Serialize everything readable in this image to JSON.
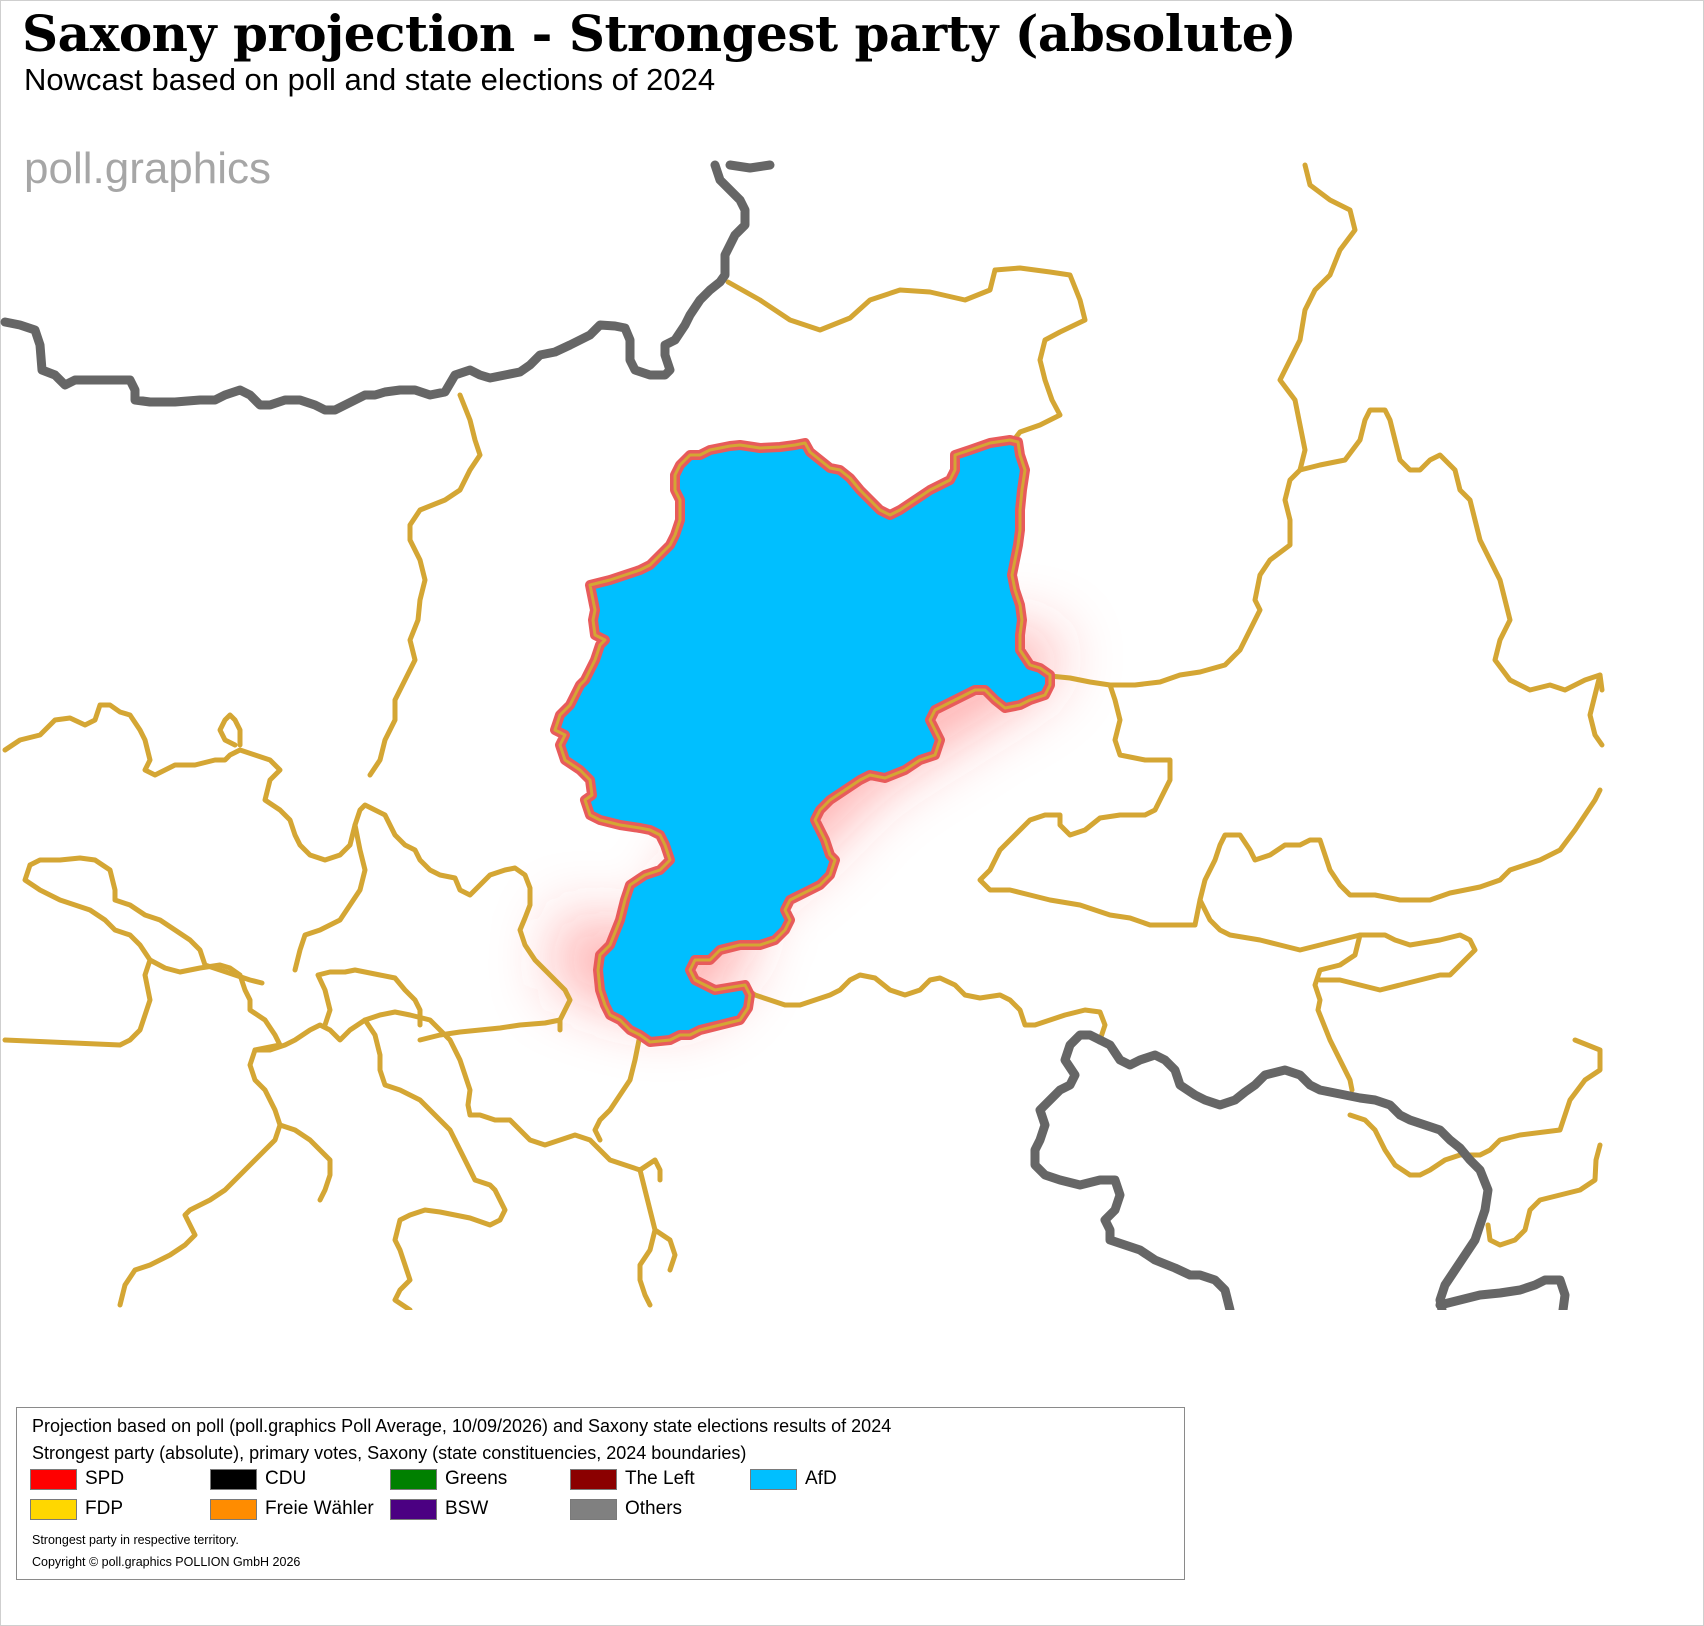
{
  "header": {
    "title": "Saxony projection - Strongest party (absolute)",
    "subtitle": "Nowcast based on poll and state elections of 2024"
  },
  "watermark": "poll.graphics",
  "map": {
    "highlighted_party": "AfD",
    "highlight_fill": "#00bfff",
    "constituency_border_color": "#d4a634",
    "state_border_color": "#666666",
    "highlight_outline_color": "#e85b5b",
    "glow_color": "#ff3b3b"
  },
  "legend": {
    "source_line": "Projection based on poll (poll.graphics Poll Average, 10/09/2026) and Saxony state elections results of 2024",
    "detail_line": "Strongest party (absolute), primary votes, Saxony (state constituencies, 2024 boundaries)",
    "parties": [
      {
        "name": "SPD",
        "color": "#ff0000"
      },
      {
        "name": "CDU",
        "color": "#000000"
      },
      {
        "name": "Greens",
        "color": "#008000"
      },
      {
        "name": "The Left",
        "color": "#8b0000"
      },
      {
        "name": "AfD",
        "color": "#00bfff"
      },
      {
        "name": "FDP",
        "color": "#ffd700"
      },
      {
        "name": "Freie Wähler",
        "color": "#ff8c00"
      },
      {
        "name": "BSW",
        "color": "#4b0082"
      },
      {
        "name": "Others",
        "color": "#808080"
      }
    ],
    "note": "Strongest party in respective territory.",
    "copyright": "Copyright © poll.graphics POLLION GmbH 2026"
  }
}
